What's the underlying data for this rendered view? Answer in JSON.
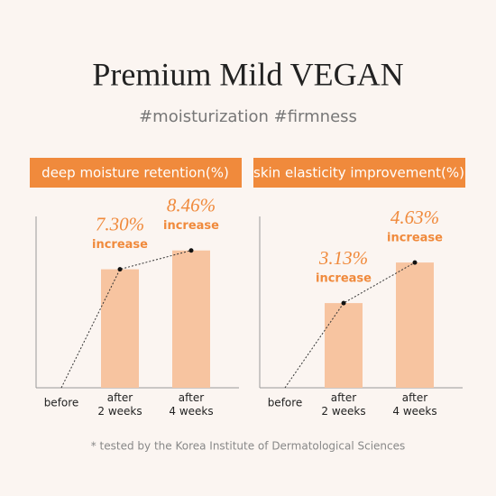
{
  "title": "Premium Mild VEGAN",
  "subtitle": "#moisturization #firmness",
  "footnote": "* tested by the Korea Institute of Dermatological Sciences",
  "chart_data": [
    {
      "type": "bar",
      "title": "deep moisture retention(%)",
      "categories": [
        "before",
        "after\n2 weeks",
        "after\n4 weeks"
      ],
      "values": [
        0,
        7.3,
        8.46
      ],
      "value_labels": [
        null,
        "7.30%",
        "8.46%"
      ],
      "value_notes": [
        null,
        "increase",
        "increase"
      ],
      "color": "#f7c4a0",
      "ylim": [
        0,
        10
      ]
    },
    {
      "type": "bar",
      "title": "skin elasticity improvement(%)",
      "categories": [
        "before",
        "after\n2 weeks",
        "after\n4 weeks"
      ],
      "values": [
        0,
        3.13,
        4.63
      ],
      "value_labels": [
        null,
        "3.13%",
        "4.63%"
      ],
      "value_notes": [
        null,
        "increase",
        "increase"
      ],
      "color": "#f7c4a0",
      "ylim": [
        0,
        6
      ]
    }
  ]
}
